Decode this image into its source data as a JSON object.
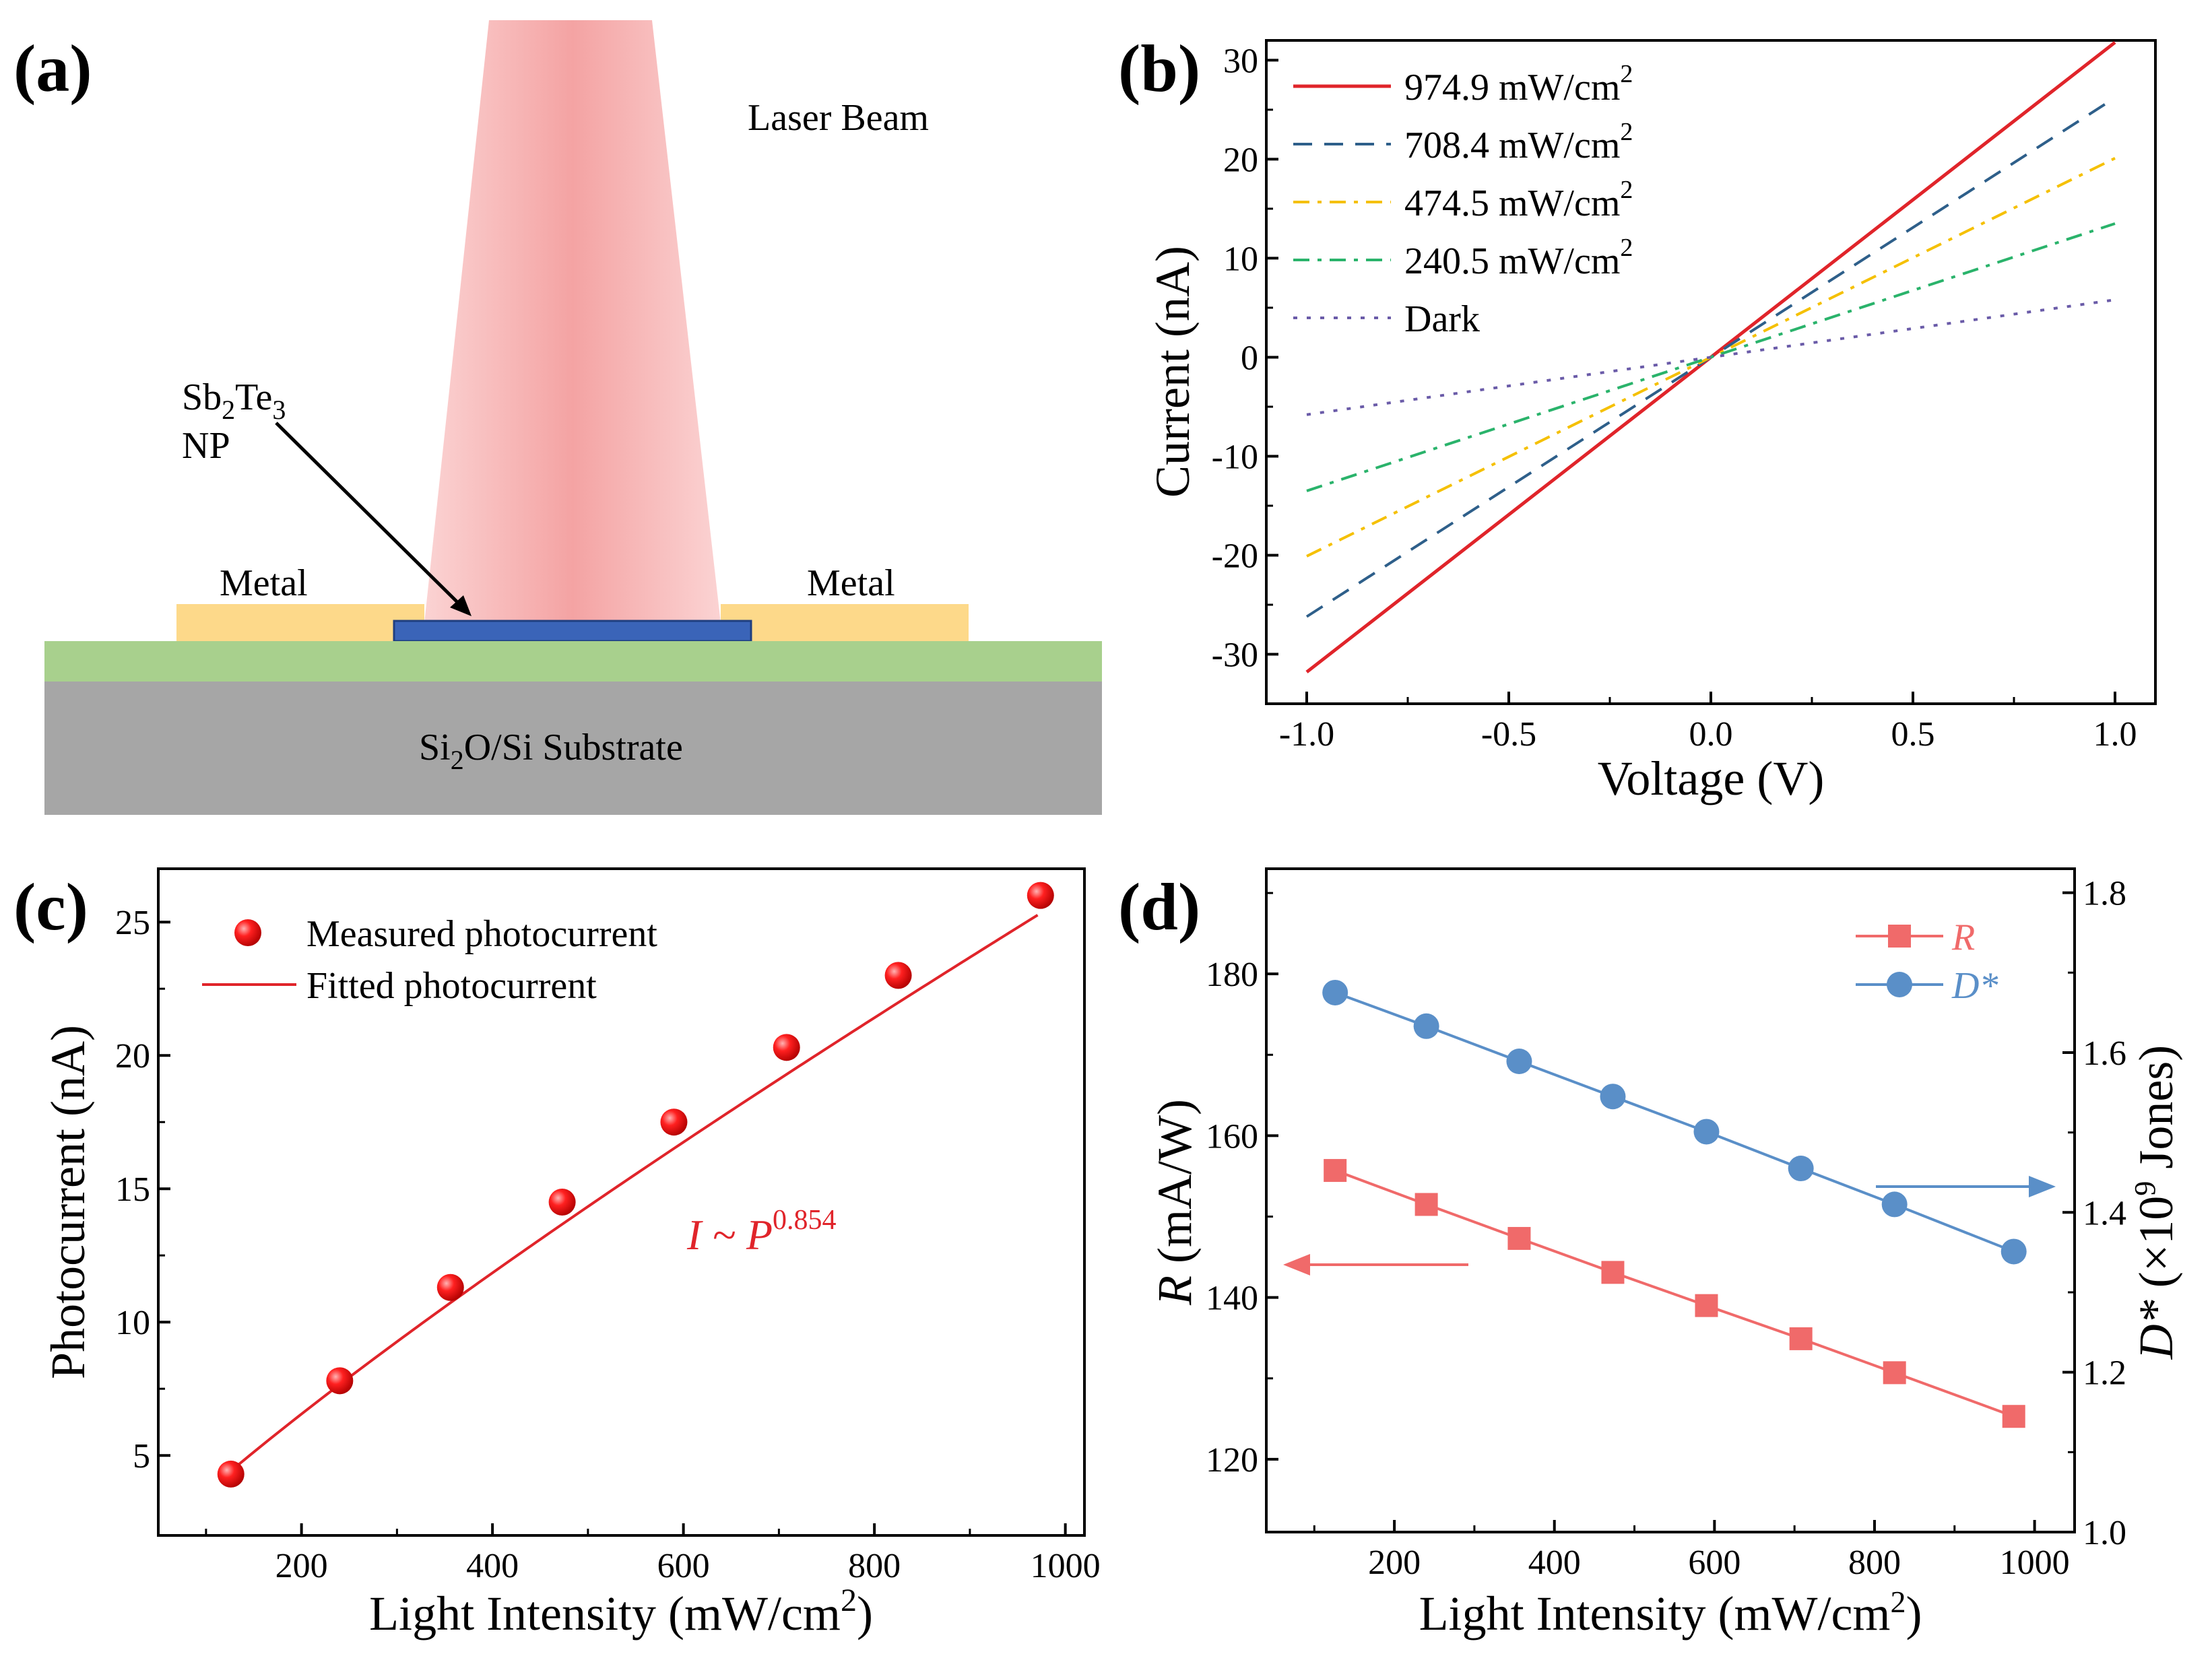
{
  "panel_labels": {
    "a": "(a)",
    "b": "(b)",
    "c": "(c)",
    "d": "(d)"
  },
  "diagram": {
    "laser_beam_label": "Laser Beam",
    "np_label_main": "Sb",
    "np_label_sub1": "2",
    "np_label_mid": "Te",
    "np_label_sub2": "3",
    "np_label_line2": "NP",
    "metal_left": "Metal",
    "metal_right": "Metal",
    "substrate_main": "Si",
    "substrate_sub": "2",
    "substrate_rest": "O/Si Substrate",
    "colors": {
      "beam": "#f08080",
      "metal": "#fdd98a",
      "np": "#3a64b8",
      "oxide": "#a8d08d",
      "substrate": "#a6a6a6"
    }
  },
  "chart_data": [
    {
      "id": "b",
      "type": "line",
      "xlabel": "Voltage (V)",
      "ylabel": "Current (nA)",
      "xlim": [
        -1.1,
        1.1
      ],
      "ylim": [
        -35,
        32
      ],
      "xticks": [
        -1.0,
        -0.5,
        0.0,
        0.5,
        1.0
      ],
      "xtick_labels": [
        "-1.0",
        "-0.5",
        "0.0",
        "0.5",
        "1.0"
      ],
      "yticks": [
        -30,
        -20,
        -10,
        0,
        10,
        20,
        30
      ],
      "ytick_labels": [
        "-30",
        "-20",
        "-10",
        "0",
        "10",
        "20",
        "30"
      ],
      "legend_position": "top-left",
      "series": [
        {
          "name": "974.9 mW/cm",
          "sup": "2",
          "style": "solid",
          "color": "#e0242a",
          "x": [
            -1.0,
            1.0
          ],
          "y": [
            -31.8,
            31.8
          ]
        },
        {
          "name": "708.4 mW/cm",
          "sup": "2",
          "style": "dash",
          "color": "#2e5f8a",
          "x": [
            -1.0,
            1.0
          ],
          "y": [
            -26.2,
            26.2
          ]
        },
        {
          "name": "474.5 mW/cm",
          "sup": "2",
          "style": "dashdot",
          "color": "#f5c000",
          "x": [
            -1.0,
            1.0
          ],
          "y": [
            -20.1,
            20.1
          ]
        },
        {
          "name": "240.5 mW/cm",
          "sup": "2",
          "style": "dashdot",
          "color": "#2ab36b",
          "x": [
            -1.0,
            1.0
          ],
          "y": [
            -13.5,
            13.5
          ]
        },
        {
          "name": "Dark",
          "sup": "",
          "style": "dot",
          "color": "#6a5ba8",
          "x": [
            -1.0,
            1.0
          ],
          "y": [
            -5.8,
            5.8
          ]
        }
      ]
    },
    {
      "id": "c",
      "type": "scatter",
      "xlabel": "Light Intensity (mW/cm",
      "xlabel_sup": "2",
      "xlabel_end": ")",
      "ylabel": "Photocurrent (nA)",
      "xlim": [
        50,
        1020
      ],
      "ylim": [
        2,
        27
      ],
      "xticks": [
        200,
        400,
        600,
        800,
        1000
      ],
      "xtick_labels": [
        "200",
        "400",
        "600",
        "800",
        "1000"
      ],
      "yticks": [
        5,
        10,
        15,
        20,
        25
      ],
      "ytick_labels": [
        "5",
        "10",
        "15",
        "20",
        "25"
      ],
      "legend": [
        "Measured photocurrent",
        "Fitted photocurrent"
      ],
      "annotation_main": "I ~ P",
      "annotation_sup": "0.854",
      "color": "#e0242a",
      "x": [
        126,
        240,
        356,
        473,
        590,
        708,
        825,
        974
      ],
      "y": [
        4.3,
        7.8,
        11.3,
        14.5,
        17.5,
        20.3,
        23.0,
        26.0
      ],
      "fit_exponent": 0.854
    },
    {
      "id": "d",
      "type": "line",
      "xlabel": "Light Intensity (mW/cm",
      "xlabel_sup": "2",
      "xlabel_end": ")",
      "ylabel_left_italic": "R",
      "ylabel_left_rest": " (mA/W)",
      "ylabel_right_italic": "D*",
      "ylabel_right_rest1": " (×10",
      "ylabel_right_sup": "9",
      "ylabel_right_rest2": " Jones)",
      "xlim": [
        40,
        1050
      ],
      "ylim_left": [
        111,
        193
      ],
      "ylim_right": [
        1.0,
        1.83
      ],
      "xticks": [
        200,
        400,
        600,
        800,
        1000
      ],
      "xtick_labels": [
        "200",
        "400",
        "600",
        "800",
        "1000"
      ],
      "yticks_left": [
        120,
        140,
        160,
        180
      ],
      "ytick_labels_left": [
        "120",
        "140",
        "160",
        "180"
      ],
      "yticks_right": [
        1.0,
        1.2,
        1.4,
        1.6,
        1.8
      ],
      "ytick_labels_right": [
        "1.0",
        "1.2",
        "1.4",
        "1.6",
        "1.8"
      ],
      "series": [
        {
          "name": "R",
          "axis": "left",
          "marker": "square",
          "color": "#f06a6a",
          "x": [
            126,
            240,
            356,
            473,
            590,
            708,
            825,
            974
          ],
          "y": [
            155.7,
            151.5,
            147.3,
            143.1,
            139.0,
            134.9,
            130.7,
            125.3
          ]
        },
        {
          "name": "D*",
          "axis": "right",
          "marker": "circle",
          "color": "#5a8fc8",
          "x": [
            126,
            240,
            356,
            473,
            590,
            708,
            825,
            974
          ],
          "y": [
            1.675,
            1.633,
            1.589,
            1.545,
            1.501,
            1.455,
            1.41,
            1.351
          ]
        }
      ]
    }
  ]
}
